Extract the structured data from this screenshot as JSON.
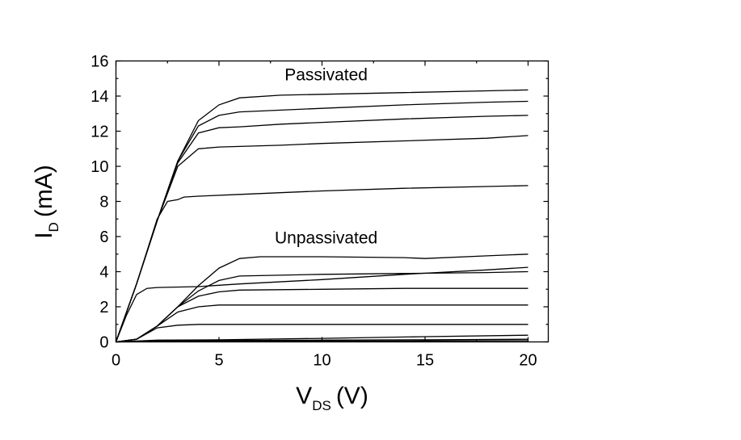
{
  "chart_data": {
    "type": "line",
    "title": "",
    "xlabel": {
      "main": "V",
      "sub": "DS",
      "unit": "(V)"
    },
    "ylabel": {
      "main": "I",
      "sub": "D",
      "unit": "(mA)"
    },
    "xlim": [
      0,
      21
    ],
    "ylim": [
      0,
      16
    ],
    "xticks": [
      0,
      5,
      10,
      15,
      20
    ],
    "yticks": [
      0,
      2,
      4,
      6,
      8,
      10,
      12,
      14,
      16
    ],
    "grid": false,
    "annotations": [
      {
        "text": "Passivated",
        "x": 10.2,
        "y": 14.9
      },
      {
        "text": "Unpassivated",
        "x": 10.2,
        "y": 5.6
      }
    ],
    "groups": [
      {
        "label": "Passivated",
        "series": [
          {
            "points": [
              [
                0,
                0
              ],
              [
                1,
                3.3
              ],
              [
                2,
                6.9
              ],
              [
                3,
                10.3
              ],
              [
                4,
                12.6
              ],
              [
                5,
                13.5
              ],
              [
                6,
                13.9
              ],
              [
                8,
                14.05
              ],
              [
                10,
                14.1
              ],
              [
                14,
                14.2
              ],
              [
                18,
                14.3
              ],
              [
                20,
                14.35
              ]
            ]
          },
          {
            "points": [
              [
                0,
                0
              ],
              [
                1,
                3.3
              ],
              [
                2,
                6.9
              ],
              [
                3,
                10.3
              ],
              [
                4,
                12.3
              ],
              [
                5,
                12.9
              ],
              [
                6,
                13.1
              ],
              [
                8,
                13.2
              ],
              [
                10,
                13.3
              ],
              [
                14,
                13.5
              ],
              [
                18,
                13.65
              ],
              [
                20,
                13.7
              ]
            ]
          },
          {
            "points": [
              [
                0,
                0
              ],
              [
                1,
                3.3
              ],
              [
                2,
                6.9
              ],
              [
                3,
                10.2
              ],
              [
                4,
                11.9
              ],
              [
                5,
                12.2
              ],
              [
                6,
                12.25
              ],
              [
                8,
                12.4
              ],
              [
                10,
                12.5
              ],
              [
                14,
                12.7
              ],
              [
                18,
                12.85
              ],
              [
                20,
                12.9
              ]
            ]
          },
          {
            "points": [
              [
                0,
                0
              ],
              [
                1,
                3.3
              ],
              [
                2,
                6.9
              ],
              [
                3,
                10.0
              ],
              [
                4,
                11.0
              ],
              [
                5,
                11.1
              ],
              [
                8,
                11.2
              ],
              [
                10,
                11.3
              ],
              [
                14,
                11.45
              ],
              [
                18,
                11.6
              ],
              [
                20,
                11.75
              ]
            ]
          },
          {
            "points": [
              [
                0,
                0
              ],
              [
                1,
                3.3
              ],
              [
                2,
                7.0
              ],
              [
                2.5,
                8.0
              ],
              [
                3,
                8.1
              ],
              [
                3.3,
                8.25
              ],
              [
                4,
                8.3
              ],
              [
                6,
                8.4
              ],
              [
                10,
                8.6
              ],
              [
                14,
                8.75
              ],
              [
                18,
                8.85
              ],
              [
                20,
                8.9
              ]
            ]
          },
          {
            "points": [
              [
                0,
                0
              ],
              [
                0.5,
                1.5
              ],
              [
                1,
                2.7
              ],
              [
                1.5,
                3.05
              ],
              [
                2,
                3.1
              ],
              [
                4,
                3.15
              ],
              [
                6,
                3.3
              ],
              [
                10,
                3.55
              ],
              [
                14,
                3.85
              ],
              [
                18,
                4.1
              ],
              [
                20,
                4.25
              ]
            ]
          }
        ]
      },
      {
        "label": "Unpassivated",
        "series": [
          {
            "points": [
              [
                0,
                0
              ],
              [
                1,
                0.15
              ],
              [
                2,
                0.9
              ],
              [
                3,
                2.0
              ],
              [
                4,
                3.2
              ],
              [
                5,
                4.2
              ],
              [
                6,
                4.75
              ],
              [
                7,
                4.85
              ],
              [
                10,
                4.85
              ],
              [
                14,
                4.8
              ],
              [
                15,
                4.75
              ],
              [
                18,
                4.9
              ],
              [
                20,
                5.0
              ]
            ]
          },
          {
            "points": [
              [
                0,
                0
              ],
              [
                1,
                0.15
              ],
              [
                2,
                0.9
              ],
              [
                3,
                2.0
              ],
              [
                4,
                2.9
              ],
              [
                5,
                3.5
              ],
              [
                6,
                3.75
              ],
              [
                10,
                3.85
              ],
              [
                14,
                3.9
              ],
              [
                18,
                3.95
              ],
              [
                20,
                4.0
              ]
            ]
          },
          {
            "points": [
              [
                0,
                0
              ],
              [
                1,
                0.15
              ],
              [
                2,
                0.9
              ],
              [
                3,
                2.0
              ],
              [
                4,
                2.6
              ],
              [
                5,
                2.85
              ],
              [
                6,
                2.95
              ],
              [
                10,
                3.0
              ],
              [
                14,
                3.05
              ],
              [
                18,
                3.05
              ],
              [
                20,
                3.05
              ]
            ]
          },
          {
            "points": [
              [
                0,
                0
              ],
              [
                1,
                0.15
              ],
              [
                2,
                0.9
              ],
              [
                3,
                1.7
              ],
              [
                4,
                2.0
              ],
              [
                5,
                2.1
              ],
              [
                10,
                2.1
              ],
              [
                14,
                2.1
              ],
              [
                18,
                2.1
              ],
              [
                20,
                2.1
              ]
            ]
          },
          {
            "points": [
              [
                0,
                0
              ],
              [
                1,
                0.15
              ],
              [
                2,
                0.8
              ],
              [
                3,
                0.95
              ],
              [
                4,
                1.0
              ],
              [
                10,
                1.0
              ],
              [
                20,
                1.0
              ]
            ]
          },
          {
            "points": [
              [
                0,
                0
              ],
              [
                1,
                0.05
              ],
              [
                2,
                0.1
              ],
              [
                5,
                0.12
              ],
              [
                10,
                0.2
              ],
              [
                15,
                0.3
              ],
              [
                20,
                0.38
              ]
            ]
          },
          {
            "points": [
              [
                0,
                0
              ],
              [
                2,
                0.05
              ],
              [
                5,
                0.08
              ],
              [
                10,
                0.1
              ],
              [
                15,
                0.12
              ],
              [
                20,
                0.15
              ]
            ]
          },
          {
            "points": [
              [
                0,
                0
              ],
              [
                5,
                0.03
              ],
              [
                10,
                0.05
              ],
              [
                15,
                0.06
              ],
              [
                20,
                0.07
              ]
            ]
          }
        ]
      }
    ]
  }
}
